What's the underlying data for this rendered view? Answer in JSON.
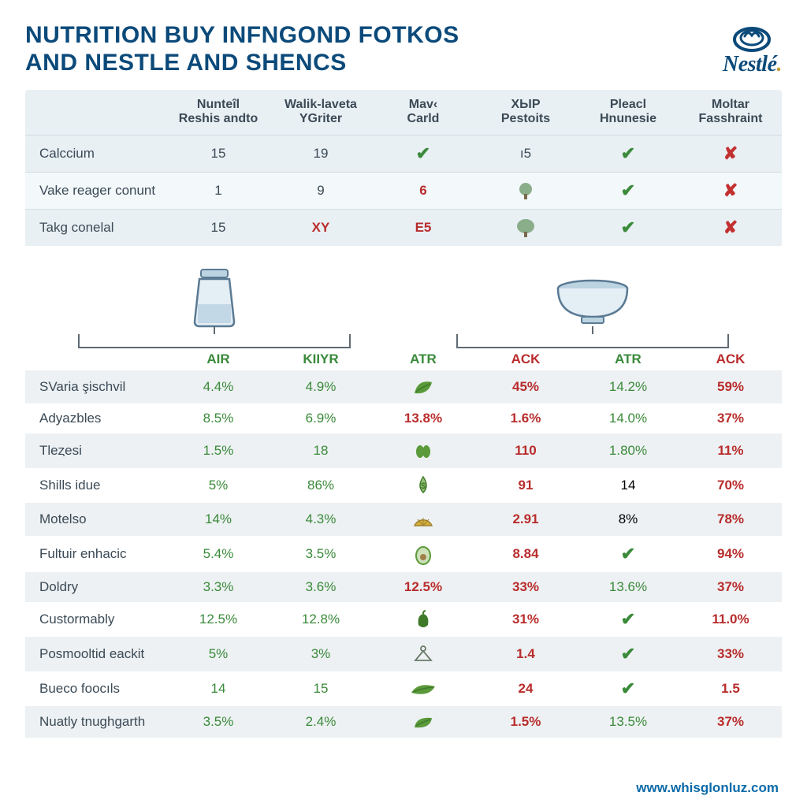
{
  "title_line1": "NUTRITION BUY INFNGOND FOTKOS",
  "title_line2": "AND NESTLE AND SHENCS",
  "logo_text": "Nestlé",
  "logo_color": "#0b4a7a",
  "footer_url": "www.whisglonluz.com",
  "colors": {
    "brand_blue": "#0b4a7a",
    "text": "#3b4a56",
    "bg_alt": "#e9f0f4",
    "green": "#3a8a3a",
    "red": "#b92c2c"
  },
  "top_table": {
    "columns": [
      "",
      "Nunteîl Reshis andto",
      "Walik-laveta YGriter",
      "Mav‹ Carld",
      "XЫP Pestoits",
      "Pleacl Hnunesie",
      "Moltar Fasshraint"
    ],
    "rows": [
      {
        "label": "Calccium",
        "cells": [
          "15",
          "19",
          "check",
          "ı5",
          "check",
          "cross"
        ]
      },
      {
        "label": "Vake reager conunt",
        "cells": [
          "1",
          "9",
          "6_red",
          "tree",
          "check",
          "cross"
        ]
      },
      {
        "label": "Takg conelal",
        "cells": [
          "15",
          "XY_red",
          "E5_red",
          "oak",
          "check",
          "cross"
        ]
      }
    ]
  },
  "sub_headers": {
    "left": [
      "AIR",
      "KIIYR",
      "ATR"
    ],
    "right": [
      "ACK",
      "ATR",
      "ACK"
    ],
    "left_color": "green",
    "right_color_pattern": [
      "red",
      "green",
      "red"
    ]
  },
  "bottom_table": {
    "rows": [
      {
        "label": "SVaria şischvil",
        "c": [
          "4.4%",
          "4.9%",
          "leaf",
          "45%",
          "14.2%",
          "59%"
        ]
      },
      {
        "label": "Adyazbles",
        "c": [
          "8.5%",
          "6.9%",
          "13.8%",
          "1.6%",
          "14.0%",
          "37%"
        ]
      },
      {
        "label": "Tleȥesi",
        "c": [
          "1.5%",
          "18",
          "buds",
          "110",
          "1.80%",
          "11%"
        ]
      },
      {
        "label": "Shills idue",
        "c": [
          "5%",
          "86%",
          "drop",
          "91",
          "14",
          "70%"
        ]
      },
      {
        "label": "Motelso",
        "c": [
          "14%",
          "4.3%",
          "lemon",
          "2.91",
          "8%",
          "78%"
        ]
      },
      {
        "label": "Fultuir enhacic",
        "c": [
          "5.4%",
          "3.5%",
          "avocado",
          "8.84",
          "check",
          "94%"
        ]
      },
      {
        "label": "Doldry",
        "c": [
          "3.3%",
          "3.6%",
          "12.5%",
          "33%",
          "13.6%",
          "37%"
        ]
      },
      {
        "label": "Custormably",
        "c": [
          "12.5%",
          "12.8%",
          "pepper",
          "31%",
          "check",
          "11.0%"
        ]
      },
      {
        "label": "Posmooltid eackit",
        "c": [
          "5%",
          "3%",
          "hanger",
          "1.4",
          "check",
          "33%"
        ]
      },
      {
        "label": "Bueco foocıls",
        "c": [
          "14",
          "15",
          "leaf2",
          "24",
          "check",
          "1.5"
        ]
      },
      {
        "label": "Nuatly tnughgarth",
        "c": [
          "3.5%",
          "2.4%",
          "leaf3",
          "1.5%",
          "13.5%",
          "37%"
        ]
      }
    ],
    "col3_is_red_rows": [
      1,
      6
    ],
    "col_classes": [
      "g",
      "g",
      "g",
      "r",
      "",
      "r"
    ],
    "col5_green_text_rows": [
      0,
      1,
      2,
      6,
      10
    ]
  }
}
